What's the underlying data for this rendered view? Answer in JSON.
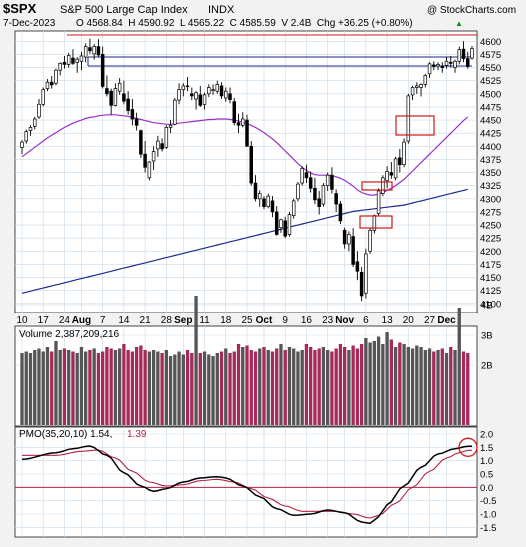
{
  "header": {
    "symbol": "$SPX",
    "name": "S&P 500 Large Cap Index",
    "exchange": "INDX",
    "date": "7-Dec-2023",
    "ohlc": "O 4568.84  H 4590.92  L 4565.22  C 4585.59  V 2.4B  Chg +36.25 (+0.80%)",
    "trend_glyph": "▲",
    "copyright": "@ StockCharts.com"
  },
  "colors": {
    "up": "#000000",
    "down": "#000000",
    "ma50": "#9b30c8",
    "ma200": "#1a2a8c",
    "volume_up": "#555555",
    "volume_down": "#a52a5a",
    "pmo": "#000000",
    "pmo_signal": "#b22245",
    "annotation_red": "#d01818",
    "annotation_blue": "#1a2a8c",
    "panel_bg": "#ffffff",
    "grid": "#c9d9e6"
  },
  "x_axis": {
    "labels": [
      "10",
      "17",
      "24",
      "Aug",
      "7",
      "14",
      "21",
      "28",
      "Sep",
      "11",
      "18",
      "25",
      "Oct",
      "9",
      "16",
      "23",
      "Nov",
      "6",
      "13",
      "20",
      "27",
      "Dec"
    ],
    "bold": [
      "Aug",
      "Sep",
      "Oct",
      "Nov",
      "Dec"
    ]
  },
  "price_panel": {
    "y_ticks": [
      4100,
      4125,
      4150,
      4175,
      4200,
      4225,
      4250,
      4275,
      4300,
      4325,
      4350,
      4375,
      4400,
      4425,
      4450,
      4475,
      4500,
      4525,
      4550,
      4575,
      4600
    ],
    "ylim": [
      4092,
      4612
    ]
  },
  "volume_panel": {
    "label": "Volume 2,387,209,216",
    "y_ticks": [
      "2B",
      "3B",
      "4B"
    ]
  },
  "pmo_panel": {
    "label_main": "PMO(35,20,10) 1.54,",
    "label_signal": "1.39",
    "y_ticks": [
      "-1.5",
      "-1.0",
      "-0.5",
      "0.0",
      "0.5",
      "1.0",
      "1.5",
      "2.0"
    ],
    "ylim": [
      -1.75,
      2.15
    ]
  },
  "chart_data": {
    "type": "candlestick",
    "title": "S&P 500 Large Cap Index",
    "ohlc_daily": [
      [
        4398,
        4412,
        4385,
        4408
      ],
      [
        4410,
        4432,
        4405,
        4428
      ],
      [
        4430,
        4440,
        4420,
        4436
      ],
      [
        4438,
        4456,
        4432,
        4452
      ],
      [
        4456,
        4490,
        4452,
        4480
      ],
      [
        4480,
        4512,
        4476,
        4508
      ],
      [
        4510,
        4528,
        4505,
        4522
      ],
      [
        4522,
        4534,
        4510,
        4517
      ],
      [
        4520,
        4548,
        4516,
        4545
      ],
      [
        4545,
        4560,
        4535,
        4558
      ],
      [
        4560,
        4572,
        4548,
        4556
      ],
      [
        4556,
        4578,
        4550,
        4573
      ],
      [
        4568,
        4585,
        4555,
        4558
      ],
      [
        4560,
        4570,
        4540,
        4566
      ],
      [
        4562,
        4580,
        4545,
        4572
      ],
      [
        4570,
        4596,
        4560,
        4590
      ],
      [
        4588,
        4605,
        4576,
        4582
      ],
      [
        4576,
        4595,
        4565,
        4590
      ],
      [
        4590,
        4604,
        4570,
        4574
      ],
      [
        4575,
        4590,
        4510,
        4514
      ],
      [
        4510,
        4535,
        4495,
        4500
      ],
      [
        4505,
        4510,
        4460,
        4478
      ],
      [
        4478,
        4520,
        4476,
        4510
      ],
      [
        4505,
        4530,
        4498,
        4520
      ],
      [
        4500,
        4525,
        4480,
        4486
      ],
      [
        4490,
        4505,
        4460,
        4468
      ],
      [
        4470,
        4490,
        4440,
        4452
      ],
      [
        4452,
        4464,
        4430,
        4440
      ],
      [
        4430,
        4432,
        4378,
        4385
      ],
      [
        4385,
        4410,
        4350,
        4360
      ],
      [
        4340,
        4372,
        4335,
        4370
      ],
      [
        4372,
        4400,
        4355,
        4390
      ],
      [
        4395,
        4420,
        4380,
        4410
      ],
      [
        4405,
        4415,
        4390,
        4395
      ],
      [
        4398,
        4440,
        4395,
        4436
      ],
      [
        4436,
        4450,
        4425,
        4440
      ],
      [
        4442,
        4492,
        4440,
        4488
      ],
      [
        4488,
        4520,
        4480,
        4508
      ],
      [
        4508,
        4520,
        4495,
        4515
      ],
      [
        4515,
        4532,
        4505,
        4514
      ],
      [
        4500,
        4512,
        4488,
        4496
      ],
      [
        4490,
        4505,
        4470,
        4502
      ],
      [
        4498,
        4515,
        4475,
        4478
      ],
      [
        4480,
        4502,
        4470,
        4498
      ],
      [
        4500,
        4518,
        4494,
        4512
      ],
      [
        4506,
        4518,
        4498,
        4508
      ],
      [
        4505,
        4525,
        4500,
        4518
      ],
      [
        4515,
        4522,
        4490,
        4496
      ],
      [
        4492,
        4512,
        4485,
        4505
      ],
      [
        4500,
        4512,
        4482,
        4489
      ],
      [
        4485,
        4492,
        4440,
        4445
      ],
      [
        4445,
        4462,
        4425,
        4440
      ],
      [
        4440,
        4465,
        4436,
        4452
      ],
      [
        4450,
        4460,
        4410,
        4400
      ],
      [
        4400,
        4410,
        4325,
        4330
      ],
      [
        4330,
        4345,
        4295,
        4300
      ],
      [
        4300,
        4316,
        4285,
        4310
      ],
      [
        4300,
        4305,
        4280,
        4285
      ],
      [
        4285,
        4310,
        4282,
        4305
      ],
      [
        4296,
        4305,
        4265,
        4275
      ],
      [
        4275,
        4286,
        4230,
        4232
      ],
      [
        4245,
        4262,
        4235,
        4260
      ],
      [
        4258,
        4266,
        4225,
        4229
      ],
      [
        4232,
        4275,
        4228,
        4270
      ],
      [
        4268,
        4300,
        4262,
        4296
      ],
      [
        4300,
        4332,
        4295,
        4328
      ],
      [
        4330,
        4362,
        4325,
        4358
      ],
      [
        4350,
        4365,
        4330,
        4340
      ],
      [
        4340,
        4352,
        4312,
        4320
      ],
      [
        4320,
        4340,
        4290,
        4298
      ],
      [
        4300,
        4315,
        4270,
        4285
      ],
      [
        4290,
        4330,
        4285,
        4325
      ],
      [
        4325,
        4350,
        4315,
        4345
      ],
      [
        4345,
        4360,
        4310,
        4318
      ],
      [
        4310,
        4318,
        4275,
        4290
      ],
      [
        4290,
        4296,
        4252,
        4258
      ],
      [
        4240,
        4245,
        4205,
        4214
      ],
      [
        4214,
        4238,
        4200,
        4232
      ],
      [
        4228,
        4244,
        4170,
        4175
      ],
      [
        4180,
        4200,
        4145,
        4162
      ],
      [
        4160,
        4170,
        4105,
        4115
      ],
      [
        4120,
        4205,
        4110,
        4195
      ],
      [
        4200,
        4245,
        4195,
        4240
      ],
      [
        4240,
        4270,
        4234,
        4268
      ],
      [
        4272,
        4320,
        4268,
        4315
      ],
      [
        4310,
        4345,
        4305,
        4340
      ],
      [
        4335,
        4362,
        4320,
        4352
      ],
      [
        4350,
        4370,
        4338,
        4345
      ],
      [
        4340,
        4380,
        4335,
        4376
      ],
      [
        4378,
        4395,
        4350,
        4365
      ],
      [
        4365,
        4415,
        4360,
        4408
      ],
      [
        4410,
        4500,
        4405,
        4496
      ],
      [
        4498,
        4515,
        4488,
        4512
      ],
      [
        4512,
        4522,
        4500,
        4515
      ],
      [
        4512,
        4520,
        4495,
        4518
      ],
      [
        4518,
        4538,
        4512,
        4535
      ],
      [
        4538,
        4560,
        4530,
        4557
      ],
      [
        4555,
        4562,
        4545,
        4552
      ],
      [
        4553,
        4560,
        4545,
        4556
      ],
      [
        4552,
        4560,
        4540,
        4550
      ],
      [
        4554,
        4570,
        4548,
        4562
      ],
      [
        4560,
        4572,
        4550,
        4558
      ],
      [
        4550,
        4565,
        4540,
        4562
      ],
      [
        4562,
        4590,
        4556,
        4584
      ],
      [
        4585,
        4600,
        4560,
        4567
      ],
      [
        4567,
        4580,
        4548,
        4552
      ],
      [
        4568,
        4591,
        4565,
        4586
      ]
    ],
    "volume_b": [
      2.4,
      2.45,
      2.4,
      2.5,
      2.55,
      2.45,
      2.6,
      2.45,
      2.8,
      2.5,
      2.55,
      2.5,
      2.45,
      2.4,
      2.6,
      2.45,
      2.5,
      2.55,
      2.4,
      2.45,
      2.6,
      2.55,
      2.5,
      2.55,
      2.7,
      2.5,
      2.45,
      2.6,
      2.65,
      2.5,
      2.45,
      2.5,
      2.45,
      2.4,
      2.5,
      2.3,
      2.35,
      2.45,
      2.35,
      2.5,
      2.4,
      4.3,
      2.4,
      2.45,
      2.35,
      2.3,
      2.4,
      2.45,
      2.55,
      2.4,
      2.45,
      2.7,
      2.6,
      2.65,
      2.5,
      2.45,
      2.55,
      2.6,
      2.5,
      2.45,
      2.55,
      2.7,
      2.5,
      2.6,
      2.55,
      2.45,
      2.5,
      2.7,
      2.6,
      2.5,
      2.55,
      2.6,
      2.5,
      2.45,
      2.55,
      2.7,
      2.6,
      2.5,
      2.65,
      2.55,
      2.7,
      2.9,
      2.75,
      2.8,
      2.95,
      2.7,
      3.1,
      2.85,
      2.6,
      2.75,
      2.7,
      2.6,
      2.55,
      2.65,
      2.6,
      2.5,
      2.55,
      2.45,
      2.5,
      2.55,
      2.4,
      2.6,
      2.5,
      3.9,
      2.45,
      2.4
    ],
    "ma50": [
      4380,
      4386,
      4392,
      4398,
      4404,
      4410,
      4416,
      4421,
      4426,
      4431,
      4436,
      4440,
      4444,
      4447,
      4450,
      4453,
      4455,
      4456,
      4458,
      4459,
      4460,
      4460,
      4460,
      4459,
      4458,
      4457,
      4455,
      4453,
      4451,
      4449,
      4447,
      4445,
      4444,
      4443,
      4442,
      4442,
      4443,
      4444,
      4445,
      4446,
      4447,
      4448,
      4449,
      4450,
      4451,
      4451,
      4452,
      4452,
      4452,
      4451,
      4450,
      4448,
      4446,
      4443,
      4440,
      4436,
      4431,
      4426,
      4420,
      4414,
      4407,
      4399,
      4391,
      4383,
      4375,
      4367,
      4360,
      4354,
      4349,
      4346,
      4345,
      4345,
      4345,
      4344,
      4342,
      4339,
      4335,
      4330,
      4324,
      4317,
      4312,
      4309,
      4307,
      4307,
      4309,
      4312,
      4316,
      4320,
      4325,
      4331,
      4337,
      4345,
      4353,
      4361,
      4369,
      4377,
      4385,
      4393,
      4401,
      4409,
      4417,
      4425,
      4433,
      4441,
      4449,
      4456
    ],
    "ma200": [
      4120,
      4122,
      4124,
      4126,
      4128,
      4130,
      4132,
      4134,
      4136,
      4138,
      4140,
      4142,
      4144,
      4146,
      4148,
      4150,
      4152,
      4154,
      4156,
      4158,
      4160,
      4162,
      4164,
      4166,
      4168,
      4170,
      4172,
      4174,
      4176,
      4178,
      4180,
      4182,
      4184,
      4186,
      4188,
      4190,
      4192,
      4194,
      4196,
      4198,
      4200,
      4202,
      4204,
      4206,
      4208,
      4210,
      4212,
      4214,
      4216,
      4218,
      4220,
      4222,
      4224,
      4226,
      4228,
      4230,
      4232,
      4234,
      4236,
      4238,
      4240,
      4242,
      4244,
      4246,
      4248,
      4250,
      4252,
      4254,
      4256,
      4258,
      4260,
      4262,
      4264,
      4266,
      4268,
      4270,
      4272,
      4274,
      4276,
      4277,
      4278,
      4279,
      4280,
      4281,
      4282,
      4283,
      4284,
      4285,
      4286,
      4287,
      4288,
      4290,
      4292,
      4294,
      4296,
      4298,
      4300,
      4302,
      4304,
      4306,
      4308,
      4310,
      4312,
      4314,
      4316,
      4318
    ],
    "pmo_anchors": [
      [
        0,
        1.05
      ],
      [
        8,
        1.3
      ],
      [
        12,
        1.45
      ],
      [
        16,
        1.55
      ],
      [
        20,
        1.2
      ],
      [
        24,
        0.55
      ],
      [
        28,
        0.05
      ],
      [
        31,
        -0.15
      ],
      [
        34,
        -0.05
      ],
      [
        38,
        0.2
      ],
      [
        42,
        0.35
      ],
      [
        46,
        0.4
      ],
      [
        48,
        0.35
      ],
      [
        52,
        0.05
      ],
      [
        56,
        -0.35
      ],
      [
        60,
        -0.8
      ],
      [
        64,
        -1.05
      ],
      [
        68,
        -1.0
      ],
      [
        72,
        -0.85
      ],
      [
        76,
        -0.95
      ],
      [
        80,
        -1.3
      ],
      [
        82,
        -1.35
      ],
      [
        84,
        -1.1
      ],
      [
        86,
        -0.65
      ],
      [
        90,
        0.05
      ],
      [
        94,
        0.75
      ],
      [
        98,
        1.25
      ],
      [
        102,
        1.45
      ],
      [
        105,
        1.54
      ]
    ],
    "pmo_signal_anchors": [
      [
        0,
        1.2
      ],
      [
        8,
        1.2
      ],
      [
        14,
        1.35
      ],
      [
        18,
        1.4
      ],
      [
        22,
        1.1
      ],
      [
        26,
        0.6
      ],
      [
        30,
        0.2
      ],
      [
        34,
        0.05
      ],
      [
        38,
        0.1
      ],
      [
        42,
        0.25
      ],
      [
        46,
        0.3
      ],
      [
        50,
        0.2
      ],
      [
        54,
        -0.05
      ],
      [
        58,
        -0.4
      ],
      [
        62,
        -0.7
      ],
      [
        66,
        -0.9
      ],
      [
        70,
        -0.9
      ],
      [
        74,
        -0.9
      ],
      [
        78,
        -1.0
      ],
      [
        82,
        -1.15
      ],
      [
        84,
        -1.05
      ],
      [
        88,
        -0.6
      ],
      [
        92,
        0.0
      ],
      [
        96,
        0.6
      ],
      [
        100,
        1.1
      ],
      [
        103,
        1.3
      ],
      [
        105,
        1.39
      ]
    ]
  }
}
